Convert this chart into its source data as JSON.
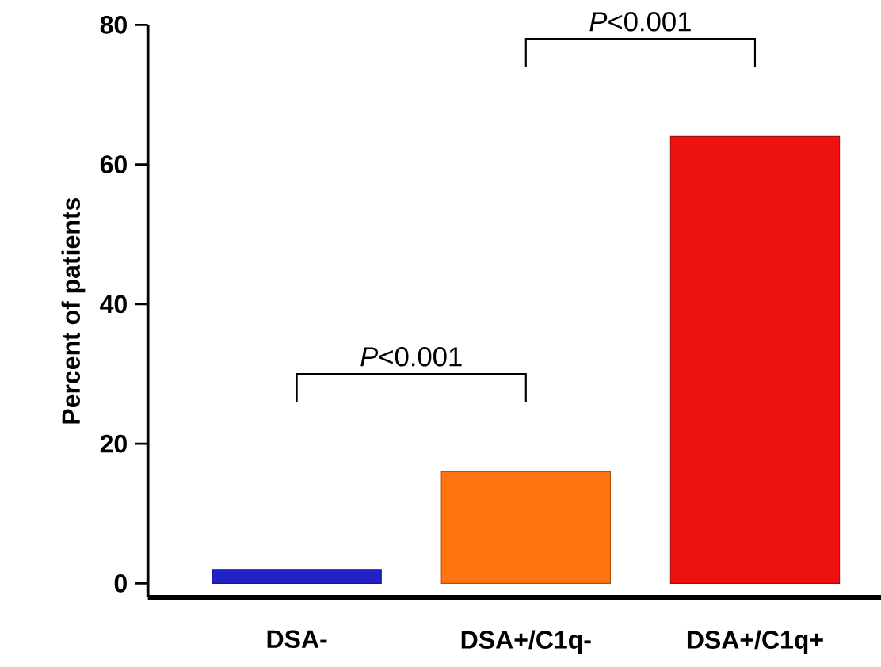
{
  "chart_data": {
    "type": "bar",
    "ylabel": "Percent of patients",
    "categories": [
      "DSA-",
      "DSA+/C1q-",
      "DSA+/C1q+"
    ],
    "values": [
      2,
      16,
      64
    ],
    "colors": [
      "#2222c8",
      "#ff7410",
      "#ee1111"
    ],
    "ylim": [
      -2,
      80
    ],
    "yticks": [
      0,
      20,
      40,
      60,
      80
    ],
    "annotations": [
      "*P*<0.001",
      "*P*<0.001"
    ]
  }
}
